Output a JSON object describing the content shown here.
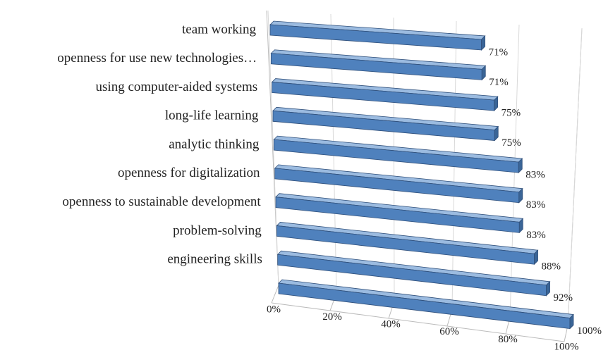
{
  "chart_data": {
    "type": "bar3d_horizontal",
    "categories": [
      "team working",
      "openness for use new technologies…",
      "using computer-aided systems",
      "long-life learning",
      "analytic thinking",
      "openness for digitalization",
      "openness to sustainable development",
      "problem-solving",
      "engineering skills",
      null
    ],
    "values": [
      71,
      71,
      75,
      75,
      83,
      83,
      83,
      88,
      92,
      100
    ],
    "value_labels": [
      "71%",
      "71%",
      "75%",
      "75%",
      "83%",
      "83%",
      "83%",
      "88%",
      "92%",
      "100%"
    ],
    "color": "#4f81bd",
    "xlim": [
      0,
      100
    ],
    "xticks": [
      {
        "value": 0,
        "label": "0%"
      },
      {
        "value": 20,
        "label": "20%"
      },
      {
        "value": 40,
        "label": "40%"
      },
      {
        "value": 60,
        "label": "60%"
      },
      {
        "value": 80,
        "label": "80%"
      },
      {
        "value": 100,
        "label": "100%"
      }
    ],
    "grid": true
  }
}
